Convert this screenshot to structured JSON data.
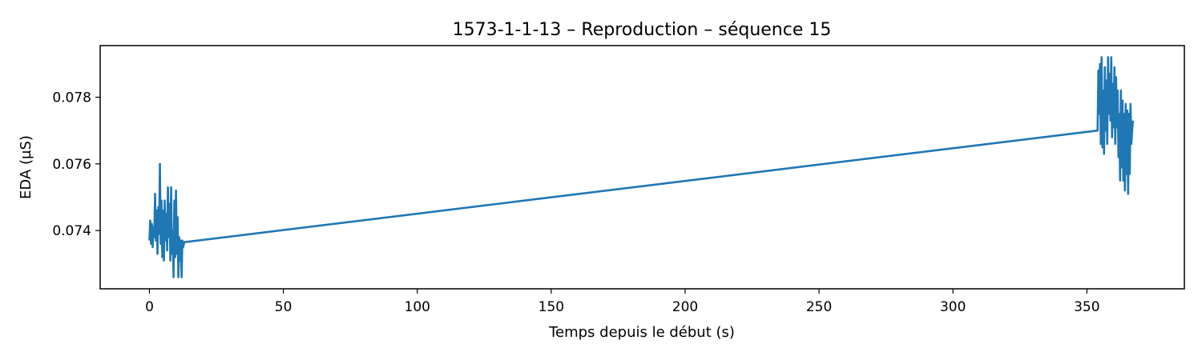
{
  "chart_data": {
    "type": "line",
    "title": "1573-1-1-13 – Reproduction – séquence 15",
    "xlabel": "Temps depuis le début (s)",
    "ylabel": "EDA (µS)",
    "xlim": [
      -18.4,
      386.4
    ],
    "ylim": [
      0.07225,
      0.07955
    ],
    "x_ticks": [
      0,
      50,
      100,
      150,
      200,
      250,
      300,
      350
    ],
    "x_tick_labels": [
      "0",
      "50",
      "100",
      "150",
      "200",
      "250",
      "300",
      "350"
    ],
    "y_ticks": [
      0.074,
      0.076,
      0.078
    ],
    "y_tick_labels": [
      "0.074",
      "0.076",
      "0.078"
    ],
    "grid": false,
    "line_color": "#1f77b4",
    "series": [
      {
        "x": [
          0.0,
          0.3,
          0.6,
          0.9,
          1.2,
          1.5,
          1.8,
          2.1,
          2.4,
          2.7,
          3.0,
          3.3,
          3.6,
          3.9,
          4.2,
          4.5,
          4.8,
          5.1,
          5.4,
          5.7,
          6.0,
          6.3,
          6.6,
          6.9,
          7.2,
          7.5,
          7.8,
          8.1,
          8.4,
          8.7,
          9.0,
          9.3,
          9.6,
          9.9,
          10.2,
          10.5,
          10.8,
          11.1,
          11.4,
          11.7,
          12.0,
          12.3,
          12.6,
          13.0,
          354.0,
          354.3,
          354.6,
          354.9,
          355.2,
          355.5,
          355.8,
          356.1,
          356.4,
          356.7,
          357.0,
          357.3,
          357.6,
          357.9,
          358.2,
          358.5,
          358.8,
          359.1,
          359.4,
          359.7,
          360.0,
          360.3,
          360.6,
          360.9,
          361.2,
          361.5,
          361.8,
          362.1,
          362.4,
          362.7,
          363.0,
          363.3,
          363.6,
          363.9,
          364.2,
          364.5,
          364.8,
          365.1,
          365.4,
          365.7,
          366.0,
          366.3,
          366.6,
          366.9,
          367.2
        ],
        "values": [
          0.0737,
          0.0743,
          0.0736,
          0.0742,
          0.0735,
          0.0741,
          0.0738,
          0.0751,
          0.0737,
          0.0746,
          0.0733,
          0.0747,
          0.0739,
          0.076,
          0.0736,
          0.0749,
          0.0732,
          0.0746,
          0.0731,
          0.0749,
          0.0737,
          0.0745,
          0.0734,
          0.0753,
          0.0738,
          0.0748,
          0.0731,
          0.0753,
          0.0733,
          0.074,
          0.0726,
          0.0749,
          0.0732,
          0.0752,
          0.0733,
          0.0744,
          0.0726,
          0.0738,
          0.0731,
          0.0737,
          0.0726,
          0.0737,
          0.0735,
          0.07365,
          0.077,
          0.0788,
          0.0775,
          0.079,
          0.0766,
          0.0792,
          0.0765,
          0.0782,
          0.0763,
          0.0789,
          0.077,
          0.0785,
          0.0766,
          0.0792,
          0.0775,
          0.0787,
          0.0773,
          0.0792,
          0.0768,
          0.0784,
          0.0771,
          0.0789,
          0.0766,
          0.0786,
          0.0771,
          0.0782,
          0.0762,
          0.0775,
          0.0755,
          0.0782,
          0.0759,
          0.0779,
          0.0755,
          0.0775,
          0.0752,
          0.0778,
          0.0757,
          0.0776,
          0.0751,
          0.0775,
          0.0757,
          0.0778,
          0.0766,
          0.077,
          0.0773
        ]
      }
    ]
  }
}
